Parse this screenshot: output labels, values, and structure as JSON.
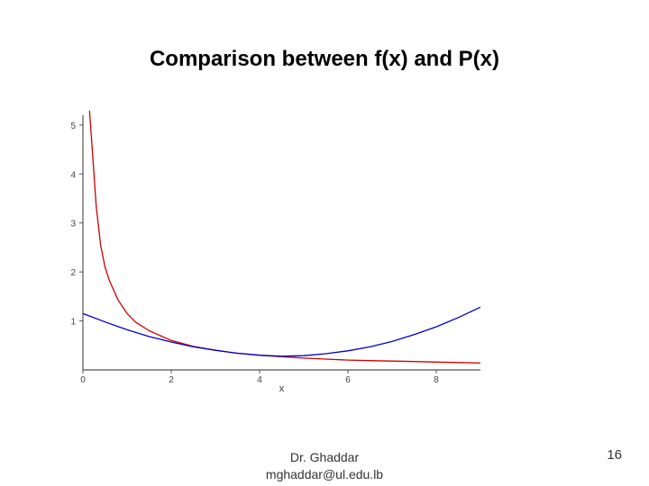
{
  "slide": {
    "title": "Comparison between f(x) and P(x)",
    "author": "Dr. Ghaddar",
    "email": "mghaddar@ul.edu.lb",
    "page_number": "16"
  },
  "chart_data": {
    "type": "line",
    "title": "",
    "xlabel": "x",
    "ylabel": "",
    "xlim": [
      0,
      9
    ],
    "ylim": [
      0,
      5.2
    ],
    "xticks": [
      0,
      2,
      4,
      6,
      8
    ],
    "yticks": [
      1,
      2,
      3,
      4,
      5
    ],
    "grid": false,
    "series": [
      {
        "color": "#cc0000",
        "x": [
          0.15,
          0.2,
          0.3,
          0.4,
          0.5,
          0.6,
          0.8,
          1.0,
          1.2,
          1.5,
          2.0,
          2.5,
          3.0,
          3.5,
          4.0,
          4.5,
          5.0,
          5.5,
          6.0,
          6.5,
          7.0,
          7.5,
          8.0,
          8.5,
          9.0
        ],
        "y": [
          5.4,
          4.65,
          3.35,
          2.55,
          2.1,
          1.82,
          1.42,
          1.15,
          0.97,
          0.8,
          0.6,
          0.48,
          0.4,
          0.34,
          0.3,
          0.27,
          0.24,
          0.22,
          0.2,
          0.19,
          0.18,
          0.17,
          0.16,
          0.15,
          0.14
        ]
      },
      {
        "color": "#0000cc",
        "x": [
          0,
          0.5,
          1.0,
          1.5,
          2.0,
          2.5,
          3.0,
          3.5,
          4.0,
          4.5,
          5.0,
          5.5,
          6.0,
          6.5,
          7.0,
          7.5,
          8.0,
          8.5,
          9.0
        ],
        "y": [
          1.15,
          0.98,
          0.82,
          0.68,
          0.57,
          0.47,
          0.4,
          0.34,
          0.3,
          0.28,
          0.29,
          0.33,
          0.39,
          0.47,
          0.58,
          0.72,
          0.88,
          1.07,
          1.28
        ]
      }
    ]
  }
}
